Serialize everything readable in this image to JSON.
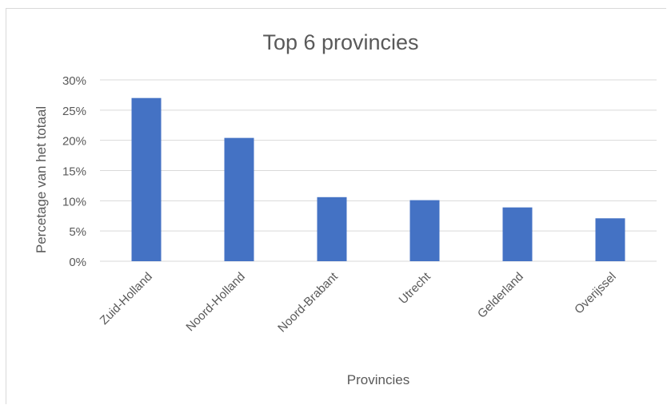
{
  "chart_data": {
    "type": "bar",
    "title": "Top 6 provincies",
    "xlabel": "Provincies",
    "ylabel": "Percetage van het totaal",
    "categories": [
      "Zuid-Holland",
      "Noord-Holland",
      "Noord-Brabant",
      "Utrecht",
      "Gelderland",
      "Overijssel"
    ],
    "values": [
      27.0,
      20.4,
      10.6,
      10.1,
      8.9,
      7.1
    ],
    "ylim": [
      0,
      30
    ],
    "yticks": [
      0,
      5,
      10,
      15,
      20,
      25,
      30
    ],
    "ytick_labels": [
      "0%",
      "5%",
      "10%",
      "15%",
      "20%",
      "25%",
      "30%"
    ],
    "grid": true,
    "bar_color": "#4472c4",
    "grid_color": "#d9d9d9",
    "text_color": "#595959"
  }
}
